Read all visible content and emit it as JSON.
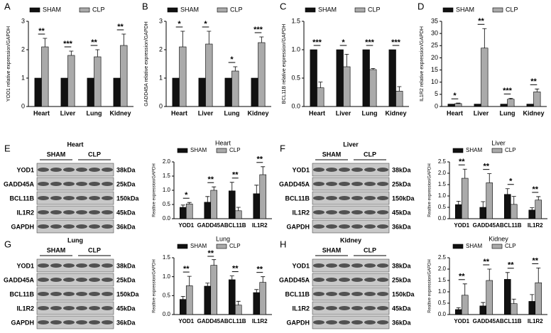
{
  "chart_data": [
    {
      "type": "bar",
      "panel": "A",
      "y_label": "YOD1 relative expression/GAPDH",
      "categories": [
        "Heart",
        "Liver",
        "Lung",
        "Kidney"
      ],
      "ylim": [
        0,
        3
      ],
      "yticks": [
        0,
        1,
        2,
        3
      ],
      "series": [
        {
          "name": "SHAM",
          "color": "#111111",
          "values": [
            1,
            1,
            1,
            1
          ]
        },
        {
          "name": "CLP",
          "color": "#aaaaaa",
          "values": [
            2.1,
            1.8,
            1.75,
            2.15
          ],
          "errors": [
            0.3,
            0.15,
            0.25,
            0.4
          ]
        }
      ],
      "annotations": [
        "**",
        "***",
        "**",
        "**"
      ]
    },
    {
      "type": "bar",
      "panel": "B",
      "y_label": "GADD45A relative expression/GAPDH",
      "categories": [
        "Heart",
        "Liver",
        "Lung",
        "Kidney"
      ],
      "ylim": [
        0,
        3
      ],
      "yticks": [
        0,
        1,
        2,
        3
      ],
      "series": [
        {
          "name": "SHAM",
          "color": "#111111",
          "values": [
            1,
            1,
            1,
            1
          ]
        },
        {
          "name": "CLP",
          "color": "#aaaaaa",
          "values": [
            2.1,
            2.2,
            1.25,
            2.25
          ],
          "errors": [
            0.55,
            0.45,
            0.15,
            0.2
          ]
        }
      ],
      "annotations": [
        "*",
        "*",
        "*",
        "***"
      ]
    },
    {
      "type": "bar",
      "panel": "C",
      "y_label": "BCL11B relative expression/GAPDH",
      "categories": [
        "Heart",
        "Liver",
        "Lung",
        "Kidney"
      ],
      "ylim": [
        0,
        1.5
      ],
      "yticks": [
        {
          "value": 0,
          "label": "0.0"
        },
        0.5,
        {
          "value": 1,
          "label": "1.0"
        },
        1.5
      ],
      "series": [
        {
          "name": "SHAM",
          "color": "#111111",
          "values": [
            1,
            1,
            1,
            1
          ]
        },
        {
          "name": "CLP",
          "color": "#aaaaaa",
          "values": [
            0.33,
            0.7,
            0.65,
            0.27
          ],
          "errors": [
            0.1,
            0.22,
            0.02,
            0.08
          ]
        }
      ],
      "annotations": [
        "***",
        "*",
        "***",
        "***"
      ]
    },
    {
      "type": "bar",
      "panel": "D",
      "y_label": "IL1R2 relative expression/GAPDH",
      "categories": [
        "Heart",
        "Liver",
        "Lung",
        "Kidney"
      ],
      "ylim": [
        0,
        35
      ],
      "yticks": [
        0,
        5,
        10,
        15,
        20,
        25,
        30,
        35
      ],
      "series": [
        {
          "name": "SHAM",
          "color": "#111111",
          "values": [
            1,
            1,
            1,
            1
          ]
        },
        {
          "name": "CLP",
          "color": "#aaaaaa",
          "values": [
            1.2,
            24,
            3,
            6
          ],
          "errors": [
            0.2,
            8,
            0.4,
            1.2
          ]
        }
      ],
      "annotations": [
        "*",
        "**",
        "***",
        "**"
      ]
    },
    {
      "type": "bar",
      "panel": "E",
      "title": "Heart",
      "y_label": "Realtive expression/GAPDH",
      "categories": [
        "YOD1",
        "GADD45A",
        "BCL11B",
        "IL1R2"
      ],
      "ylim": [
        0,
        2
      ],
      "yticks": [
        {
          "value": 0,
          "label": "0.0"
        },
        0.5,
        {
          "value": 1,
          "label": "1.0"
        },
        1.5,
        {
          "value": 2,
          "label": "2.0"
        }
      ],
      "series": [
        {
          "name": "SHAM",
          "color": "#111111",
          "values": [
            0.4,
            0.58,
            0.98,
            0.88
          ],
          "errors": [
            0.08,
            0.2,
            0.3,
            0.3
          ]
        },
        {
          "name": "CLP",
          "color": "#aaaaaa",
          "values": [
            0.52,
            1.0,
            0.28,
            1.55
          ],
          "errors": [
            0.05,
            0.12,
            0.12,
            0.28
          ]
        }
      ],
      "annotations": [
        "*",
        "**",
        "**",
        "**"
      ]
    },
    {
      "type": "bar",
      "panel": "F",
      "title": "Liver",
      "y_label": "Realtive expression/GAPDH",
      "categories": [
        "YOD1",
        "GADD45A",
        "BCL11B",
        "IL1R2"
      ],
      "ylim": [
        0,
        2.5
      ],
      "yticks": [
        {
          "value": 0,
          "label": "0.0"
        },
        0.5,
        {
          "value": 1,
          "label": "1.0"
        },
        1.5,
        {
          "value": 2,
          "label": "2.0"
        },
        2.5
      ],
      "series": [
        {
          "name": "SHAM",
          "color": "#111111",
          "values": [
            0.62,
            0.5,
            1.07,
            0.38
          ],
          "errors": [
            0.15,
            0.25,
            0.25,
            0.1
          ]
        },
        {
          "name": "CLP",
          "color": "#aaaaaa",
          "values": [
            1.78,
            1.58,
            0.63,
            0.82
          ],
          "errors": [
            0.4,
            0.4,
            0.35,
            0.15
          ]
        }
      ],
      "annotations": [
        "**",
        "**",
        "*",
        "**"
      ]
    },
    {
      "type": "bar",
      "panel": "G",
      "title": "Lung",
      "y_label": "Realtive expression/GAPDH",
      "categories": [
        "YOD1",
        "GADD45A",
        "BCL11B",
        "IL1R2"
      ],
      "ylim": [
        0,
        1.5
      ],
      "yticks": [
        {
          "value": 0,
          "label": "0.0"
        },
        0.5,
        {
          "value": 1,
          "label": "1.0"
        },
        1.5
      ],
      "series": [
        {
          "name": "SHAM",
          "color": "#111111",
          "values": [
            0.4,
            0.75,
            0.92,
            0.58
          ],
          "errors": [
            0.08,
            0.08,
            0.1,
            0.08
          ]
        },
        {
          "name": "CLP",
          "color": "#aaaaaa",
          "values": [
            0.76,
            1.3,
            0.25,
            0.85
          ],
          "errors": [
            0.25,
            0.15,
            0.1,
            0.15
          ]
        }
      ],
      "annotations": [
        "**",
        "**",
        "**",
        "**"
      ]
    },
    {
      "type": "bar",
      "panel": "H",
      "title": "Kidney",
      "y_label": "Realtive expression/GAPDH",
      "categories": [
        "YOD1",
        "GADD45A",
        "BCL11B",
        "IL1R2"
      ],
      "ylim": [
        0,
        2.5
      ],
      "yticks": [
        {
          "value": 0,
          "label": "0.0"
        },
        0.5,
        {
          "value": 1,
          "label": "1.0"
        },
        1.5,
        {
          "value": 2,
          "label": "2.0"
        },
        2.5
      ],
      "series": [
        {
          "name": "SHAM",
          "color": "#111111",
          "values": [
            0.22,
            0.38,
            1.55,
            0.58
          ],
          "errors": [
            0.08,
            0.15,
            0.3,
            0.3
          ]
        },
        {
          "name": "CLP",
          "color": "#aaaaaa",
          "values": [
            0.85,
            1.5,
            0.48,
            1.4
          ],
          "errors": [
            0.5,
            0.5,
            0.2,
            0.65
          ]
        }
      ],
      "annotations": [
        "**",
        "**",
        "**",
        "**"
      ]
    }
  ],
  "blots": [
    {
      "title": "Heart",
      "groups": [
        "SHAM",
        "CLP"
      ],
      "proteins": [
        "YOD1",
        "GADD45A",
        "BCL11B",
        "IL1R2",
        "GAPDH"
      ],
      "sizes": [
        "38kDa",
        "25kDa",
        "150kDa",
        "45kDa",
        "36kDa"
      ]
    },
    {
      "title": "Liver",
      "groups": [
        "SHAM",
        "CLP"
      ],
      "proteins": [
        "YOD1",
        "GADD45A",
        "BCL11B",
        "IL1R2",
        "GAPDH"
      ],
      "sizes": [
        "38kDa",
        "25kDa",
        "150kDa",
        "45kDa",
        "36kDa"
      ]
    },
    {
      "title": "Lung",
      "groups": [
        "SHAM",
        "CLP"
      ],
      "proteins": [
        "YOD1",
        "GADD45A",
        "BCL11B",
        "IL1R2",
        "GAPDH"
      ],
      "sizes": [
        "38kDa",
        "25kDa",
        "150kDa",
        "45kDa",
        "36kDa"
      ]
    },
    {
      "title": "Kidney",
      "groups": [
        "SHAM",
        "CLP"
      ],
      "proteins": [
        "YOD1",
        "GADD45A",
        "BCL11B",
        "IL1R2",
        "GAPDH"
      ],
      "sizes": [
        "38kDa",
        "25kDa",
        "150kDa",
        "45kDa",
        "36kDa"
      ]
    }
  ]
}
